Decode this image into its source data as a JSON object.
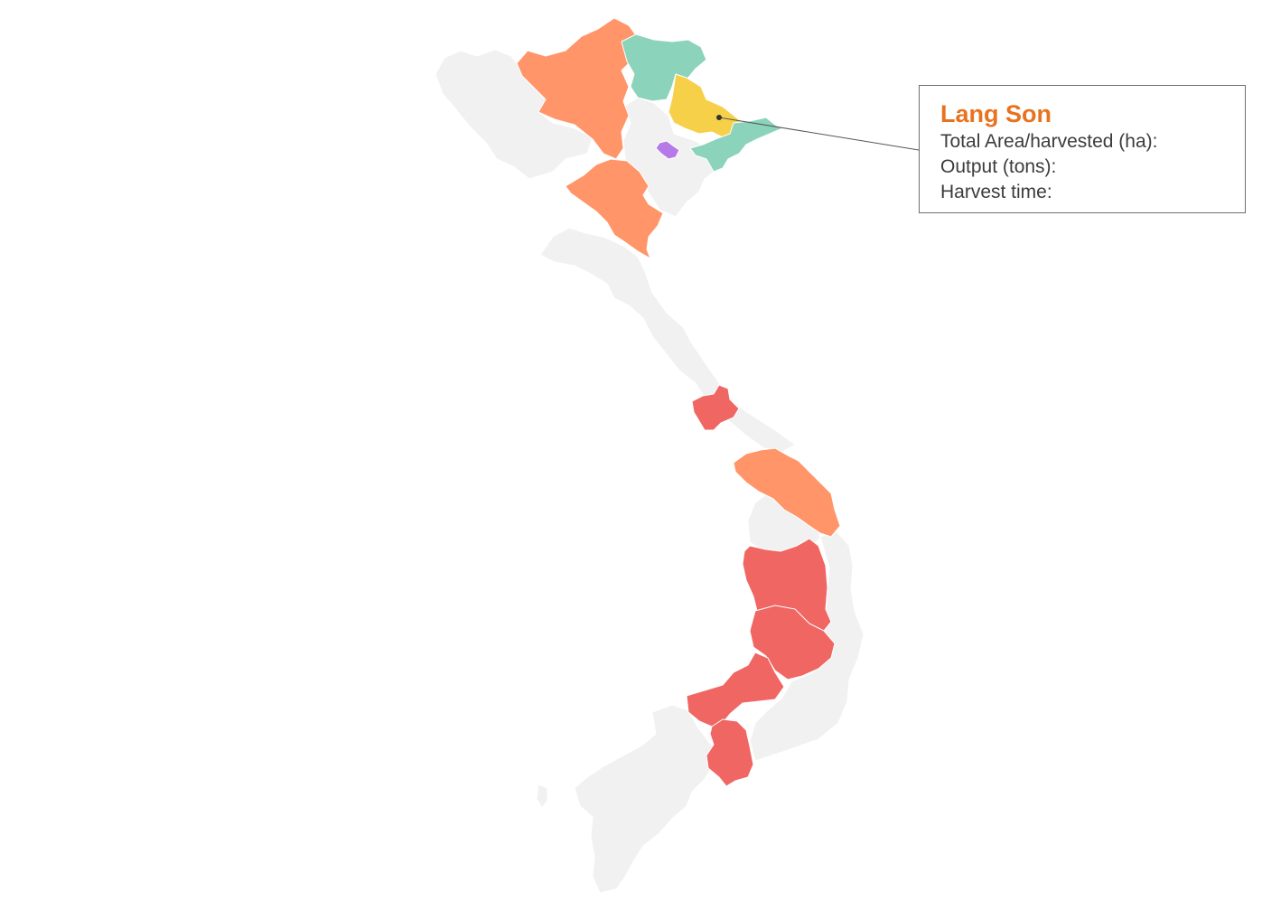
{
  "colors": {
    "background": "#ffffff",
    "base_region": "#f1f1f1",
    "province_border": "#ffffff",
    "orange": "#ff9568",
    "teal": "#8cd3bb",
    "yellow": "#f7d04a",
    "purple": "#b57ae8",
    "red": "#ef6663",
    "title": "#e8731f",
    "text": "#3c3c3c",
    "tooltip_border": "#6f6f6f",
    "leader_line": "#555555"
  },
  "tooltip": {
    "title": "Lang Son",
    "rows": [
      {
        "label": "Total Area/harvested (ha):",
        "value": ""
      },
      {
        "label": "Output (tons):",
        "value": ""
      },
      {
        "label": "Harvest time:",
        "value": ""
      }
    ]
  }
}
